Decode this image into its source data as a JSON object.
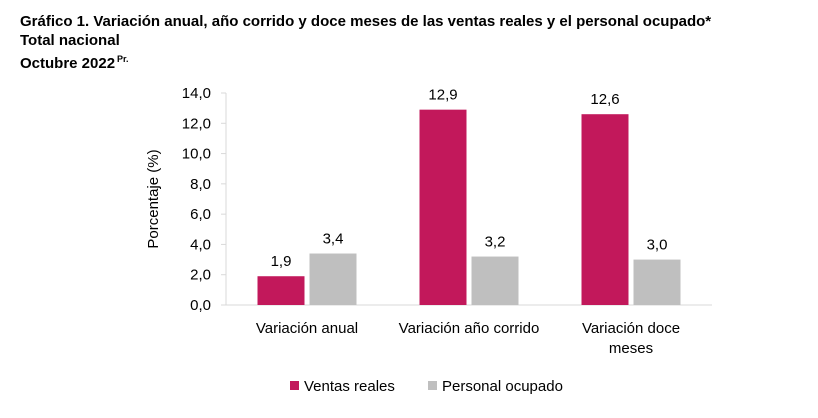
{
  "header": {
    "title": "Gráfico 1. Variación anual, año corrido y doce meses de las ventas reales y el personal ocupado*",
    "subtitle": "Total nacional",
    "period": "Octubre 2022",
    "period_sup": "Pr."
  },
  "chart_data": {
    "type": "bar",
    "categories": [
      [
        "Variación anual"
      ],
      [
        "Variación año corrido"
      ],
      [
        "Variación doce",
        "meses"
      ]
    ],
    "series": [
      {
        "name": "Ventas reales",
        "color": "#C2185B",
        "values": [
          1.9,
          12.9,
          12.6
        ],
        "labels": [
          "1,9",
          "12,9",
          "12,6"
        ]
      },
      {
        "name": "Personal ocupado",
        "color": "#BFBFBF",
        "values": [
          3.4,
          3.2,
          3.0
        ],
        "labels": [
          "3,4",
          "3,2",
          "3,0"
        ]
      }
    ],
    "ylabel": "Porcentaje (%)",
    "ylim": [
      0,
      14
    ],
    "yticks": [
      0,
      2,
      4,
      6,
      8,
      10,
      12,
      14
    ],
    "ytick_labels": [
      "0,0",
      "2,0",
      "4,0",
      "6,0",
      "8,0",
      "10,0",
      "12,0",
      "14,0"
    ],
    "grid": false,
    "legend_position": "bottom"
  }
}
